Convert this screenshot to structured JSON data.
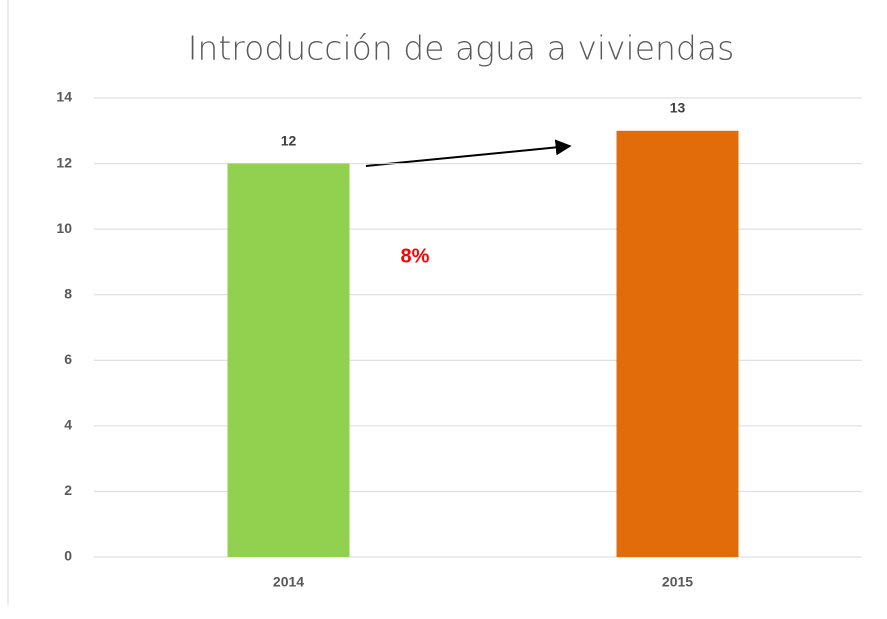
{
  "chart_data": {
    "type": "bar",
    "title": "Introducción de agua a viviendas",
    "categories": [
      "2014",
      "2015"
    ],
    "values": [
      12,
      13
    ],
    "colors": [
      "#92d050",
      "#e36c0a"
    ],
    "annotation": "8%",
    "ylim": [
      0,
      14
    ],
    "yticks": [
      0,
      2,
      4,
      6,
      8,
      10,
      12,
      14
    ],
    "grid": true
  }
}
